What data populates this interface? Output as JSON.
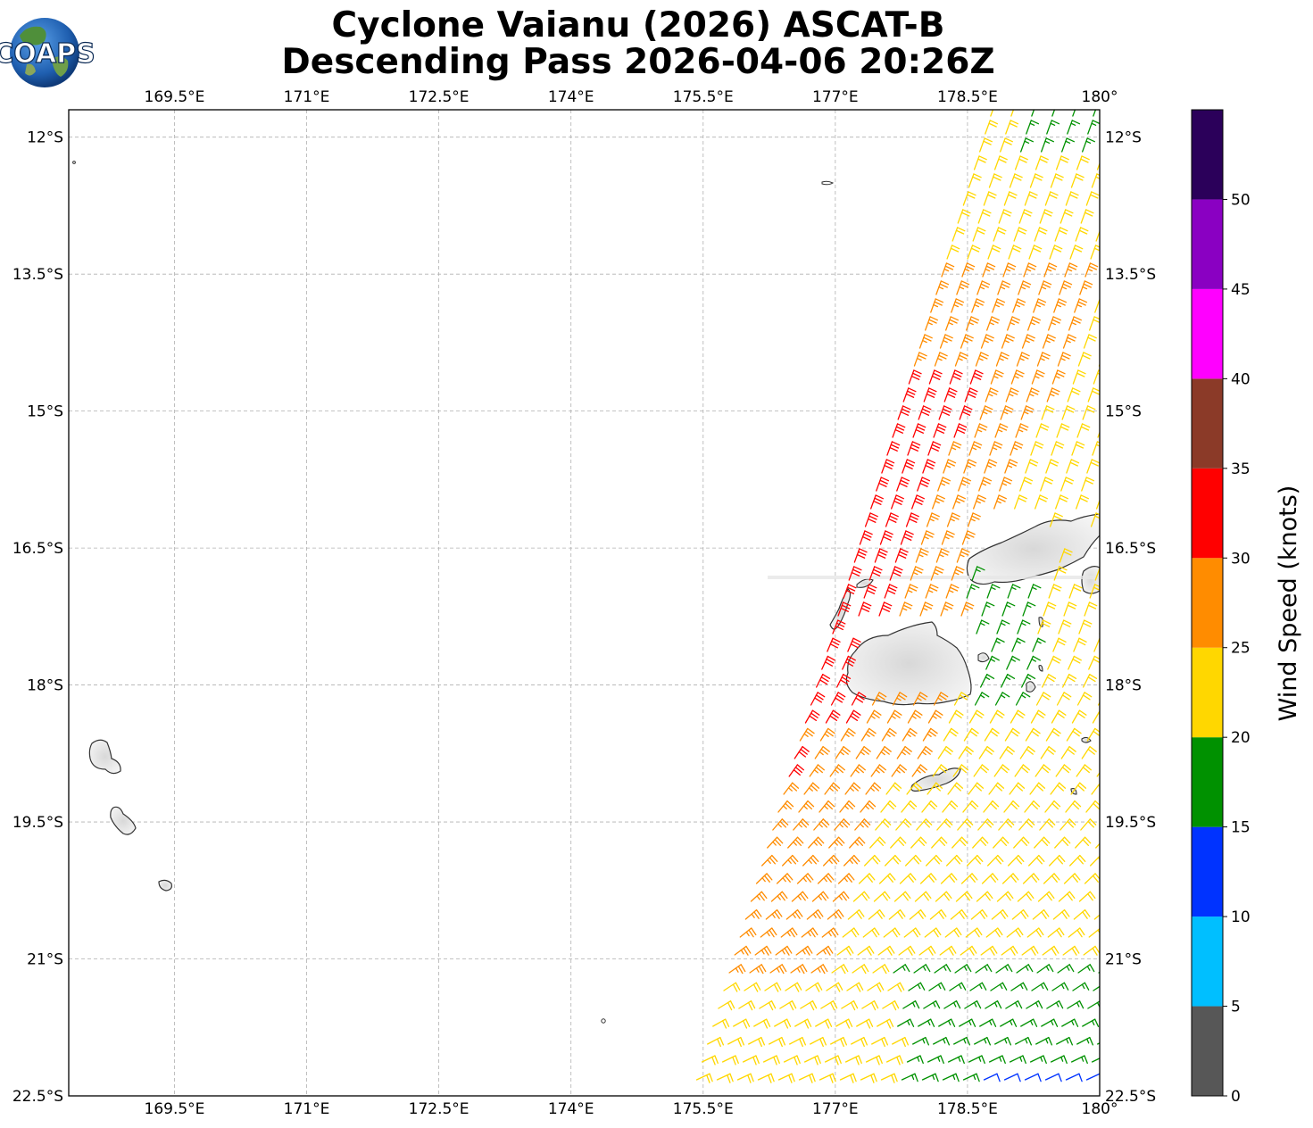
{
  "title": {
    "line1": "Cyclone Vaianu (2026) ASCAT-B",
    "line2": "Descending Pass 2026-04-06 20:26Z"
  },
  "logo": {
    "text": "COAPS",
    "icon": "globe-icon"
  },
  "map": {
    "lon_range": [
      168.3,
      180.0
    ],
    "lat_range": [
      -22.5,
      -11.7
    ],
    "lon_ticks": [
      169.5,
      171,
      172.5,
      174,
      175.5,
      177,
      178.5,
      180
    ],
    "lon_tick_labels": [
      "169.5°E",
      "171°E",
      "172.5°E",
      "174°E",
      "175.5°E",
      "177°E",
      "178.5°E",
      "180°"
    ],
    "lat_ticks": [
      -12,
      -13.5,
      -15,
      -16.5,
      -18,
      -19.5,
      -21,
      -22.5
    ],
    "lat_tick_labels": [
      "12°S",
      "13.5°S",
      "15°S",
      "16.5°S",
      "18°S",
      "19.5°S",
      "21°S",
      "22.5°S"
    ],
    "gridlines": true
  },
  "colorbar": {
    "label": "Wind Speed (knots)",
    "bounds": [
      0,
      5,
      10,
      15,
      20,
      25,
      30,
      35,
      40,
      45,
      50,
      55
    ],
    "tick_labels": [
      "0",
      "5",
      "10",
      "15",
      "20",
      "25",
      "30",
      "35",
      "40",
      "45",
      "50"
    ],
    "colors": [
      "#575757",
      "#00bfff",
      "#0033ff",
      "#009100",
      "#ffd700",
      "#ff8c00",
      "#ff0000",
      "#8b3a28",
      "#ff00ff",
      "#8a00c2",
      "#2b005a"
    ]
  },
  "wind_field": {
    "swath_description": "ASCAT-B wind barbs swath",
    "speed_bins_knots": [
      [
        0,
        5
      ],
      [
        5,
        10
      ],
      [
        10,
        15
      ],
      [
        15,
        20
      ],
      [
        20,
        25
      ],
      [
        25,
        30
      ],
      [
        30,
        35
      ]
    ]
  }
}
